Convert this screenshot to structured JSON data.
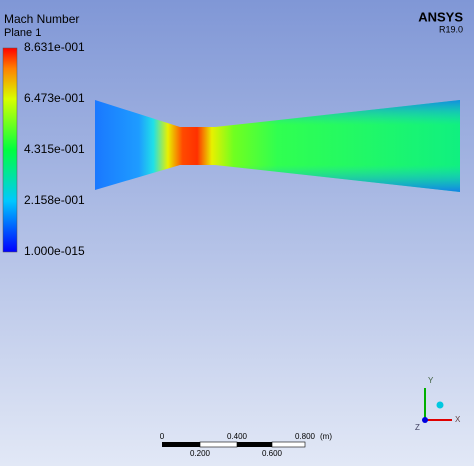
{
  "legend": {
    "title": "Mach Number",
    "subtitle": "Plane 1",
    "labels": [
      "8.631e-001",
      "6.473e-001",
      "4.315e-001",
      "2.158e-001",
      "1.000e-015"
    ]
  },
  "brand": {
    "name": "ANSYS",
    "version": "R19.0"
  },
  "scale_bar": {
    "top_labels": [
      "0",
      "0.400",
      "0.800",
      "(m)"
    ],
    "bottom_labels": [
      "0.200",
      "0.600"
    ]
  },
  "triad": {
    "labels": [
      "Y",
      "X",
      "Z"
    ]
  }
}
